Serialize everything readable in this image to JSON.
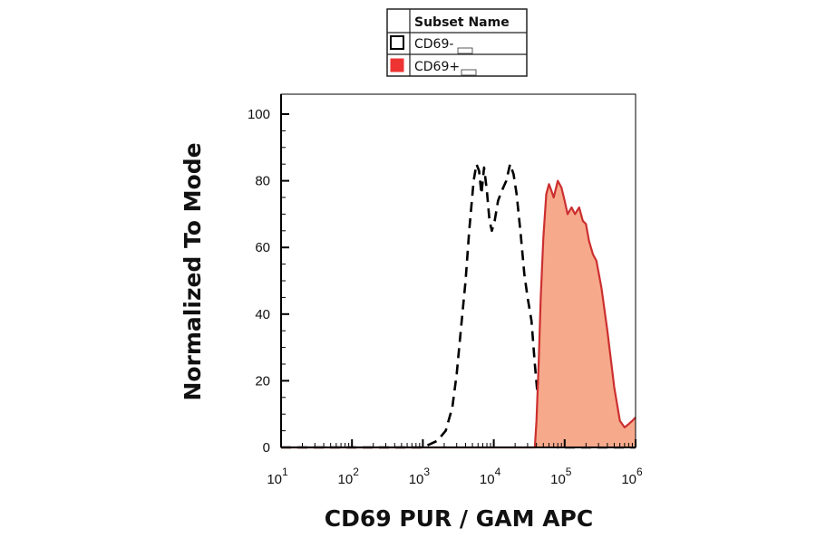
{
  "chart_data": {
    "type": "area",
    "xlabel": "CD69 PUR / GAM APC",
    "ylabel": "Normalized To Mode",
    "x_scale": "log",
    "xlim": [
      10,
      1000000
    ],
    "ylim": [
      0,
      100
    ],
    "y_ticks": [
      "0",
      "20",
      "40",
      "60",
      "80",
      "100"
    ],
    "x_ticks": [
      {
        "base": "10",
        "exp": "1",
        "value": 10
      },
      {
        "base": "10",
        "exp": "2",
        "value": 100
      },
      {
        "base": "10",
        "exp": "3",
        "value": 1000
      },
      {
        "base": "10",
        "exp": "4",
        "value": 10000
      },
      {
        "base": "10",
        "exp": "5",
        "value": 100000
      },
      {
        "base": "10",
        "exp": "6",
        "value": 1000000
      }
    ],
    "legend": {
      "header": "Subset Name",
      "position": "top-center",
      "entries": [
        {
          "label": "CD69-",
          "swatch_fill": "#ffffff",
          "swatch_stroke": "#000000"
        },
        {
          "label": "CD69+",
          "swatch_fill": "#ee3333",
          "swatch_stroke": "#000000"
        }
      ]
    },
    "series": [
      {
        "name": "CD69-",
        "style": "dashed",
        "color": "#000000",
        "fill": "none",
        "x": [
          10,
          1000,
          1600,
          2100,
          2600,
          3000,
          3500,
          4000,
          4500,
          5200,
          5700,
          6200,
          6700,
          7300,
          8000,
          8700,
          9400,
          10300,
          11500,
          13000,
          15000,
          17000,
          19000,
          21000,
          24000,
          27000,
          30000,
          34000,
          38000,
          43000,
          50000,
          58000,
          65000,
          80000,
          100000,
          200000,
          1000000
        ],
        "y": [
          0,
          0,
          2,
          5,
          12,
          22,
          37,
          50,
          65,
          80,
          85,
          83,
          76,
          84,
          77,
          68,
          65,
          68,
          74,
          77,
          80,
          85,
          82,
          76,
          64,
          52,
          45,
          38,
          25,
          12,
          5,
          2,
          1,
          0,
          0,
          0,
          0
        ]
      },
      {
        "name": "CD69+",
        "style": "solid",
        "color": "#cc2f2f",
        "fill": "#f7a98c",
        "x": [
          10,
          38000,
          40000,
          43000,
          46000,
          50000,
          55000,
          60000,
          65000,
          70000,
          80000,
          90000,
          100000,
          110000,
          125000,
          140000,
          160000,
          180000,
          200000,
          220000,
          250000,
          280000,
          330000,
          400000,
          500000,
          600000,
          700000,
          800000,
          900000,
          1000000
        ],
        "y": [
          0,
          0,
          8,
          25,
          45,
          63,
          76,
          79,
          77,
          75,
          80,
          78,
          74,
          70,
          72,
          70,
          72,
          68,
          67,
          62,
          58,
          56,
          48,
          35,
          18,
          8,
          6,
          7,
          8,
          9
        ]
      }
    ]
  }
}
